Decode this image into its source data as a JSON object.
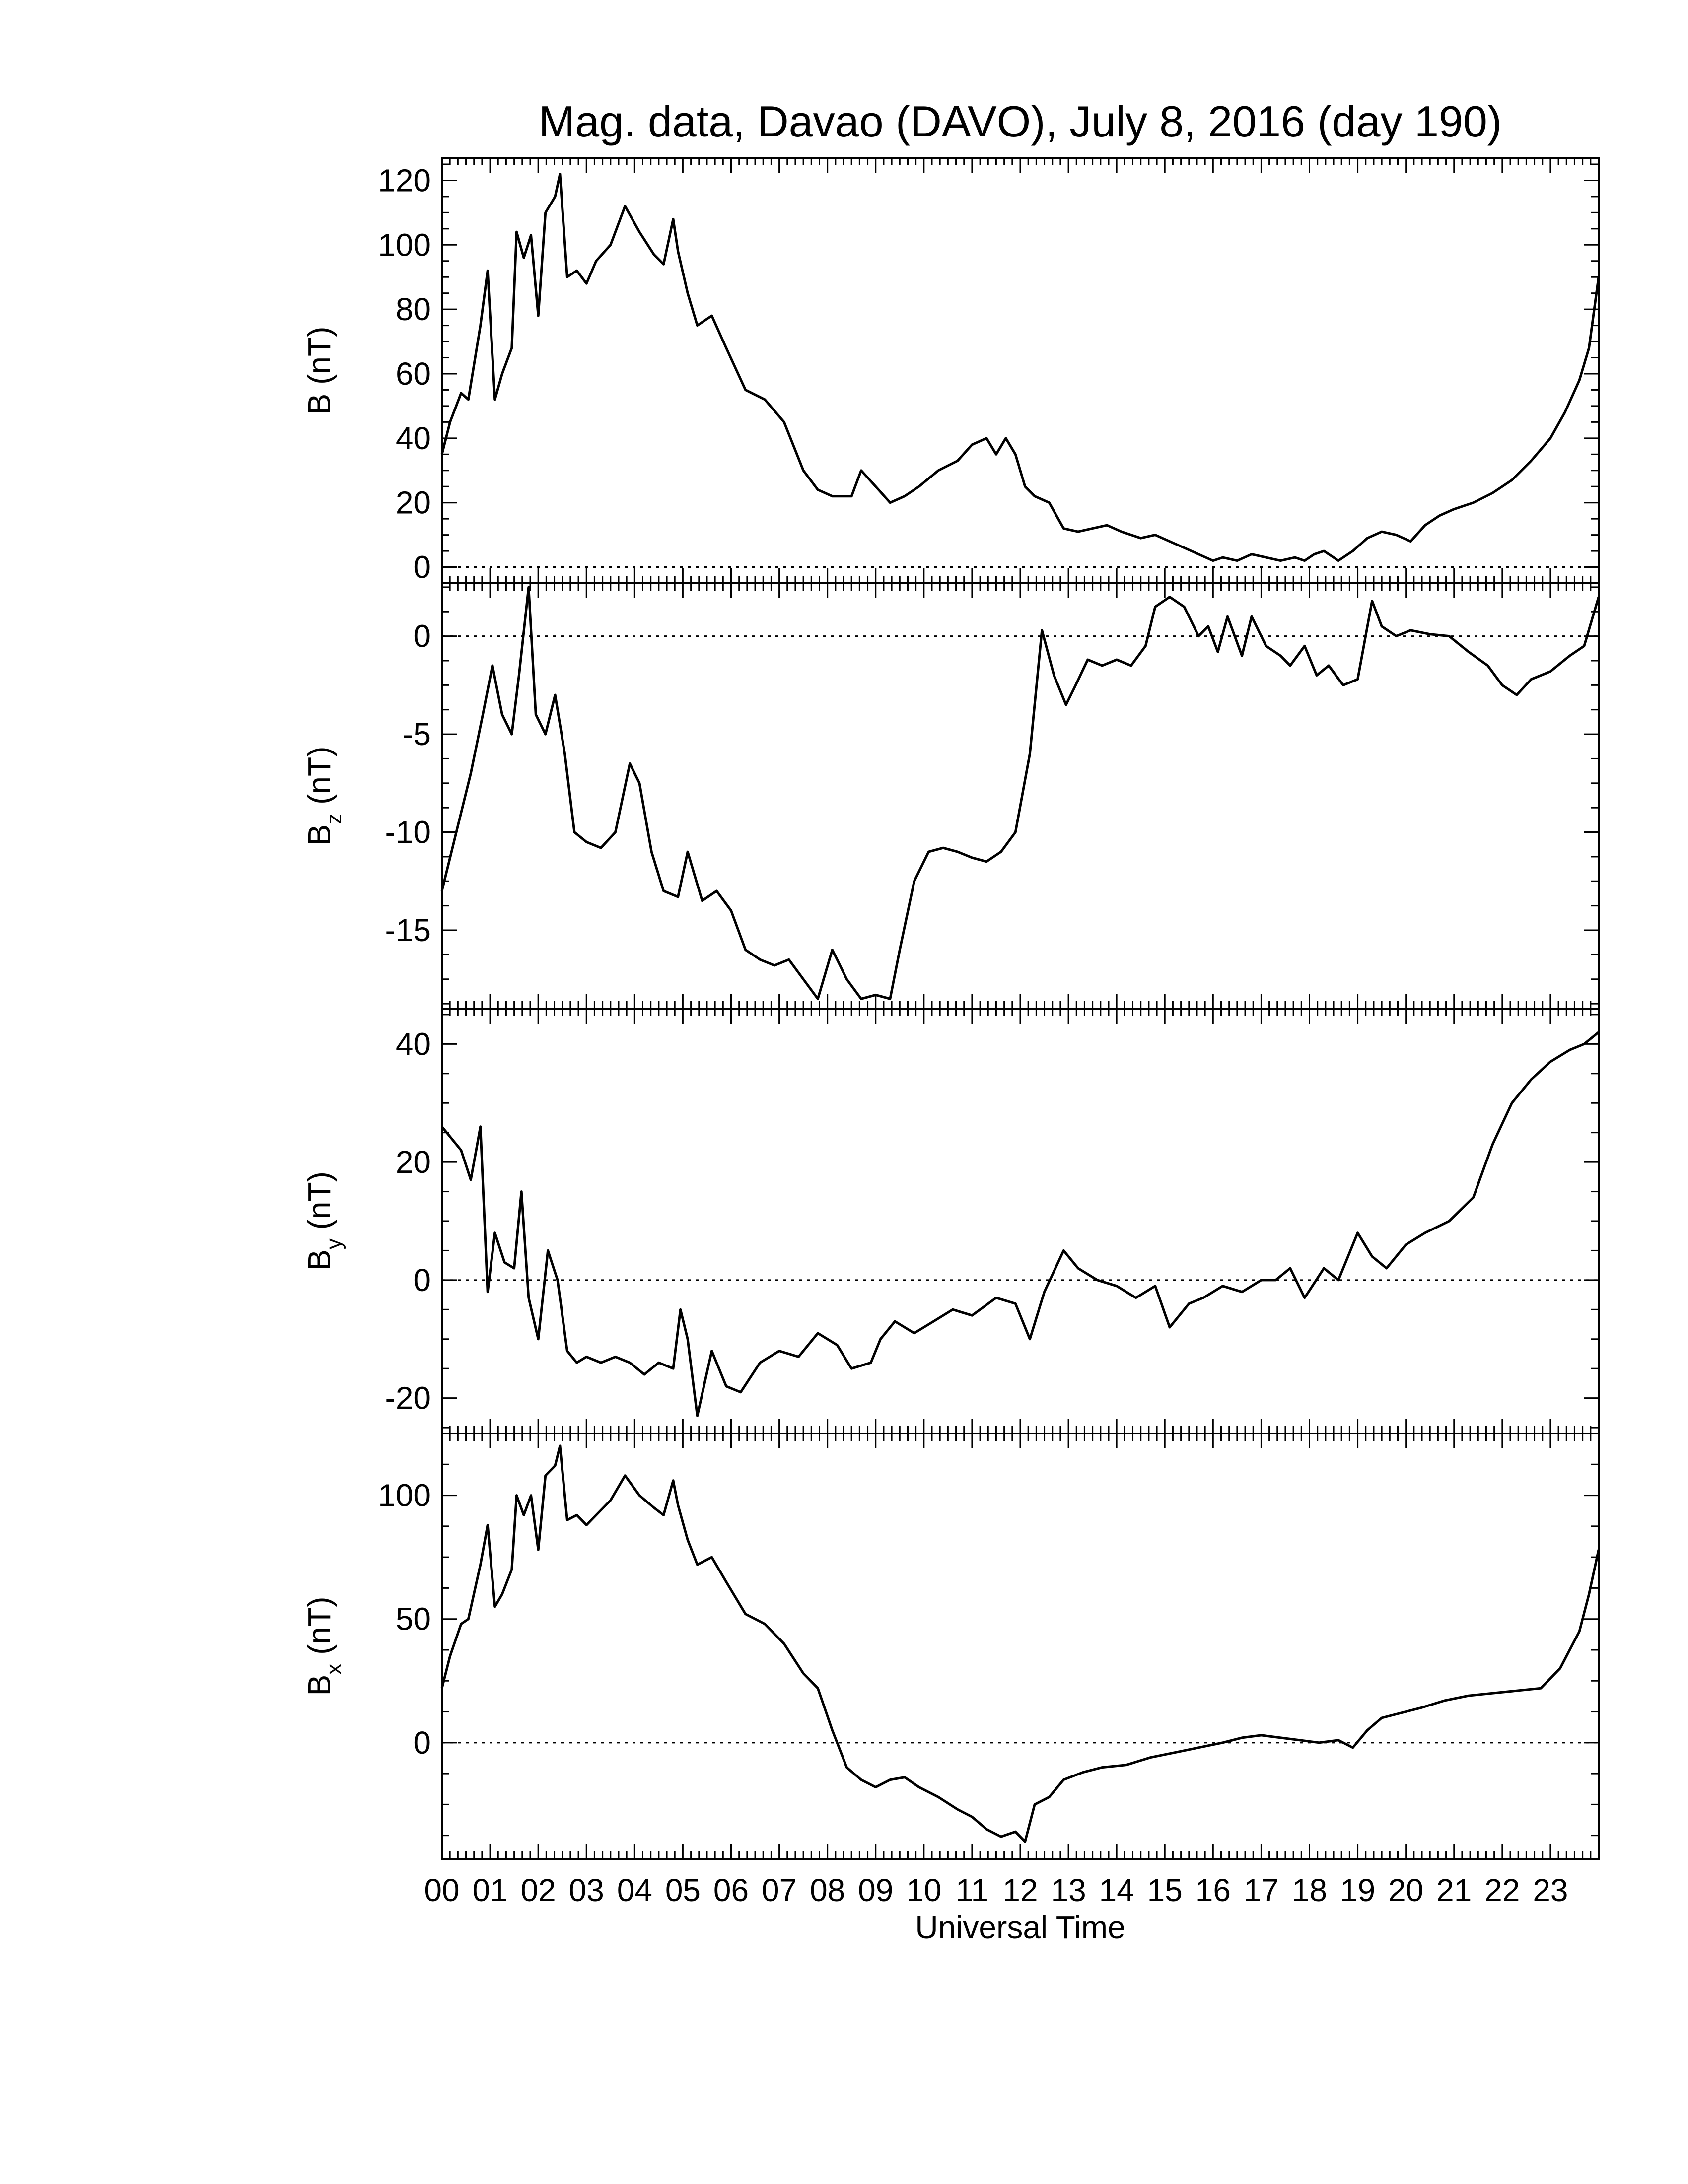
{
  "title": "Mag. data, Davao (DAVO), July 8, 2016 (day 190)",
  "x_axis_label": "Universal Time",
  "hour_labels": [
    "00",
    "01",
    "02",
    "03",
    "04",
    "05",
    "06",
    "07",
    "08",
    "09",
    "10",
    "11",
    "12",
    "13",
    "14",
    "15",
    "16",
    "17",
    "18",
    "19",
    "20",
    "21",
    "22",
    "23"
  ],
  "colors": {
    "line": "#000000",
    "zero_line": "#000000",
    "background": "#ffffff"
  },
  "chart_data": [
    {
      "type": "line",
      "ylabel": "B (nT)",
      "ylabel_main": "B",
      "ylabel_sub": "",
      "ylabel_unit": " (nT)",
      "ylim": [
        -5,
        127
      ],
      "yticks": [
        0,
        20,
        40,
        60,
        80,
        100,
        120
      ],
      "xlim": [
        0,
        24
      ],
      "zero_line": true,
      "x": [
        0,
        0.17,
        0.4,
        0.55,
        0.8,
        0.95,
        1.1,
        1.25,
        1.45,
        1.55,
        1.7,
        1.85,
        2.0,
        2.15,
        2.35,
        2.45,
        2.6,
        2.8,
        3.0,
        3.2,
        3.5,
        3.8,
        4.1,
        4.4,
        4.6,
        4.8,
        4.9,
        5.1,
        5.3,
        5.6,
        5.9,
        6.3,
        6.7,
        7.1,
        7.5,
        7.8,
        8.1,
        8.5,
        8.7,
        9.0,
        9.3,
        9.6,
        9.9,
        10.3,
        10.7,
        11.0,
        11.3,
        11.5,
        11.7,
        11.9,
        12.1,
        12.3,
        12.6,
        12.9,
        13.2,
        13.5,
        13.8,
        14.1,
        14.5,
        14.8,
        15.1,
        15.4,
        15.7,
        16.0,
        16.2,
        16.5,
        16.8,
        17.1,
        17.4,
        17.7,
        17.9,
        18.1,
        18.3,
        18.6,
        18.9,
        19.2,
        19.5,
        19.8,
        20.1,
        20.4,
        20.7,
        21.0,
        21.4,
        21.8,
        22.2,
        22.6,
        23.0,
        23.3,
        23.6,
        23.8,
        24.0
      ],
      "values": [
        35,
        45,
        54,
        52,
        75,
        92,
        52,
        60,
        68,
        104,
        96,
        103,
        78,
        110,
        115,
        122,
        90,
        92,
        88,
        95,
        100,
        112,
        104,
        97,
        94,
        108,
        98,
        85,
        75,
        78,
        68,
        55,
        52,
        45,
        30,
        24,
        22,
        22,
        30,
        25,
        20,
        22,
        25,
        30,
        33,
        38,
        40,
        35,
        40,
        35,
        25,
        22,
        20,
        12,
        11,
        12,
        13,
        11,
        9,
        10,
        8,
        6,
        4,
        2,
        3,
        2,
        4,
        3,
        2,
        3,
        2,
        4,
        5,
        2,
        5,
        9,
        11,
        10,
        8,
        13,
        16,
        18,
        20,
        23,
        27,
        33,
        40,
        48,
        58,
        68,
        90
      ]
    },
    {
      "type": "line",
      "ylabel": "Bz (nT)",
      "ylabel_main": "B",
      "ylabel_sub": "z",
      "ylabel_unit": " (nT)",
      "ylim": [
        -19,
        2.7
      ],
      "yticks": [
        -15,
        -10,
        -5,
        0
      ],
      "xlim": [
        0,
        24
      ],
      "zero_line": true,
      "x": [
        0,
        0.3,
        0.6,
        0.85,
        1.05,
        1.25,
        1.45,
        1.6,
        1.8,
        1.95,
        2.15,
        2.35,
        2.55,
        2.75,
        3.0,
        3.3,
        3.6,
        3.9,
        4.1,
        4.35,
        4.6,
        4.9,
        5.1,
        5.4,
        5.7,
        6.0,
        6.3,
        6.6,
        6.9,
        7.2,
        7.5,
        7.8,
        8.1,
        8.4,
        8.7,
        9.0,
        9.3,
        9.5,
        9.8,
        10.1,
        10.4,
        10.7,
        11.0,
        11.3,
        11.6,
        11.9,
        12.2,
        12.45,
        12.7,
        12.95,
        13.15,
        13.4,
        13.7,
        14.0,
        14.3,
        14.6,
        14.8,
        15.1,
        15.4,
        15.7,
        15.9,
        16.1,
        16.3,
        16.6,
        16.8,
        17.1,
        17.4,
        17.6,
        17.9,
        18.15,
        18.4,
        18.7,
        19.0,
        19.3,
        19.5,
        19.8,
        20.1,
        20.5,
        20.9,
        21.3,
        21.7,
        22.0,
        22.3,
        22.6,
        23.0,
        23.4,
        23.7,
        24.0
      ],
      "values": [
        -13,
        -10,
        -7,
        -4,
        -1.5,
        -4,
        -5,
        -2,
        2.5,
        -4,
        -5,
        -3,
        -6,
        -10,
        -10.5,
        -10.8,
        -10,
        -6.5,
        -7.5,
        -11,
        -13,
        -13.3,
        -11,
        -13.5,
        -13,
        -14,
        -16,
        -16.5,
        -16.8,
        -16.5,
        -17.5,
        -18.5,
        -16,
        -17.5,
        -18.5,
        -18.3,
        -18.5,
        -16,
        -12.5,
        -11,
        -10.8,
        -11,
        -11.3,
        -11.5,
        -11,
        -10,
        -6,
        0.3,
        -2,
        -3.5,
        -2.5,
        -1.2,
        -1.5,
        -1.2,
        -1.5,
        -0.5,
        1.5,
        2,
        1.5,
        0,
        0.5,
        -0.8,
        1,
        -1,
        1,
        -0.5,
        -1,
        -1.5,
        -0.5,
        -2,
        -1.5,
        -2.5,
        -2.2,
        1.8,
        0.5,
        0,
        0.3,
        0.1,
        0,
        -0.8,
        -1.5,
        -2.5,
        -3,
        -2.2,
        -1.8,
        -1,
        -0.5,
        2
      ]
    },
    {
      "type": "line",
      "ylabel": "By (nT)",
      "ylabel_main": "B",
      "ylabel_sub": "y",
      "ylabel_unit": " (nT)",
      "ylim": [
        -26,
        46
      ],
      "yticks": [
        -20,
        0,
        20,
        40
      ],
      "xlim": [
        0,
        24
      ],
      "zero_line": true,
      "x": [
        0,
        0.2,
        0.4,
        0.6,
        0.8,
        0.95,
        1.1,
        1.3,
        1.5,
        1.65,
        1.8,
        2.0,
        2.2,
        2.4,
        2.6,
        2.8,
        3.0,
        3.3,
        3.6,
        3.9,
        4.2,
        4.5,
        4.8,
        4.95,
        5.1,
        5.3,
        5.6,
        5.9,
        6.2,
        6.6,
        7.0,
        7.4,
        7.8,
        8.2,
        8.5,
        8.9,
        9.1,
        9.4,
        9.8,
        10.2,
        10.6,
        11.0,
        11.5,
        11.9,
        12.2,
        12.5,
        12.9,
        13.2,
        13.6,
        14.0,
        14.4,
        14.8,
        15.1,
        15.5,
        15.8,
        16.2,
        16.6,
        17.0,
        17.3,
        17.6,
        17.9,
        18.3,
        18.6,
        19.0,
        19.3,
        19.6,
        20.0,
        20.4,
        20.9,
        21.4,
        21.8,
        22.2,
        22.6,
        23.0,
        23.4,
        23.7,
        24.0
      ],
      "values": [
        26,
        24,
        22,
        17,
        26,
        -2,
        8,
        3,
        2,
        15,
        -3,
        -10,
        5,
        0,
        -12,
        -14,
        -13,
        -14,
        -13,
        -14,
        -16,
        -14,
        -15,
        -5,
        -10,
        -23,
        -12,
        -18,
        -19,
        -14,
        -12,
        -13,
        -9,
        -11,
        -15,
        -14,
        -10,
        -7,
        -9,
        -7,
        -5,
        -6,
        -3,
        -4,
        -10,
        -2,
        5,
        2,
        0,
        -1,
        -3,
        -1,
        -8,
        -4,
        -3,
        -1,
        -2,
        0,
        0,
        2,
        -3,
        2,
        0,
        8,
        4,
        2,
        6,
        8,
        10,
        14,
        23,
        30,
        34,
        37,
        39,
        40,
        42
      ]
    },
    {
      "type": "line",
      "ylabel": "Bx (nT)",
      "ylabel_main": "B",
      "ylabel_sub": "x",
      "ylabel_unit": " (nT)",
      "ylim": [
        -47,
        125
      ],
      "yticks": [
        0,
        50,
        100
      ],
      "xlim": [
        0,
        24
      ],
      "zero_line": true,
      "x": [
        0,
        0.17,
        0.4,
        0.55,
        0.8,
        0.95,
        1.1,
        1.25,
        1.45,
        1.55,
        1.7,
        1.85,
        2.0,
        2.15,
        2.35,
        2.45,
        2.6,
        2.8,
        3.0,
        3.2,
        3.5,
        3.8,
        4.1,
        4.4,
        4.6,
        4.8,
        4.9,
        5.1,
        5.3,
        5.6,
        5.9,
        6.3,
        6.7,
        7.1,
        7.5,
        7.8,
        8.1,
        8.4,
        8.7,
        9.0,
        9.3,
        9.6,
        9.9,
        10.3,
        10.7,
        11.0,
        11.3,
        11.6,
        11.9,
        12.1,
        12.3,
        12.6,
        12.9,
        13.3,
        13.7,
        14.2,
        14.7,
        15.2,
        15.7,
        16.2,
        16.6,
        17.0,
        17.4,
        17.8,
        18.2,
        18.6,
        18.9,
        19.2,
        19.5,
        19.9,
        20.3,
        20.8,
        21.3,
        21.8,
        22.3,
        22.8,
        23.2,
        23.6,
        23.8,
        24.0
      ],
      "values": [
        22,
        35,
        48,
        50,
        72,
        88,
        55,
        60,
        70,
        100,
        92,
        100,
        78,
        108,
        112,
        120,
        90,
        92,
        88,
        92,
        98,
        108,
        100,
        95,
        92,
        106,
        96,
        82,
        72,
        75,
        65,
        52,
        48,
        40,
        28,
        22,
        5,
        -10,
        -15,
        -18,
        -15,
        -14,
        -18,
        -22,
        -27,
        -30,
        -35,
        -38,
        -36,
        -40,
        -25,
        -22,
        -15,
        -12,
        -10,
        -9,
        -6,
        -4,
        -2,
        0,
        2,
        3,
        2,
        1,
        0,
        1,
        -2,
        5,
        10,
        12,
        14,
        17,
        19,
        20,
        21,
        22,
        30,
        45,
        60,
        78
      ]
    }
  ]
}
